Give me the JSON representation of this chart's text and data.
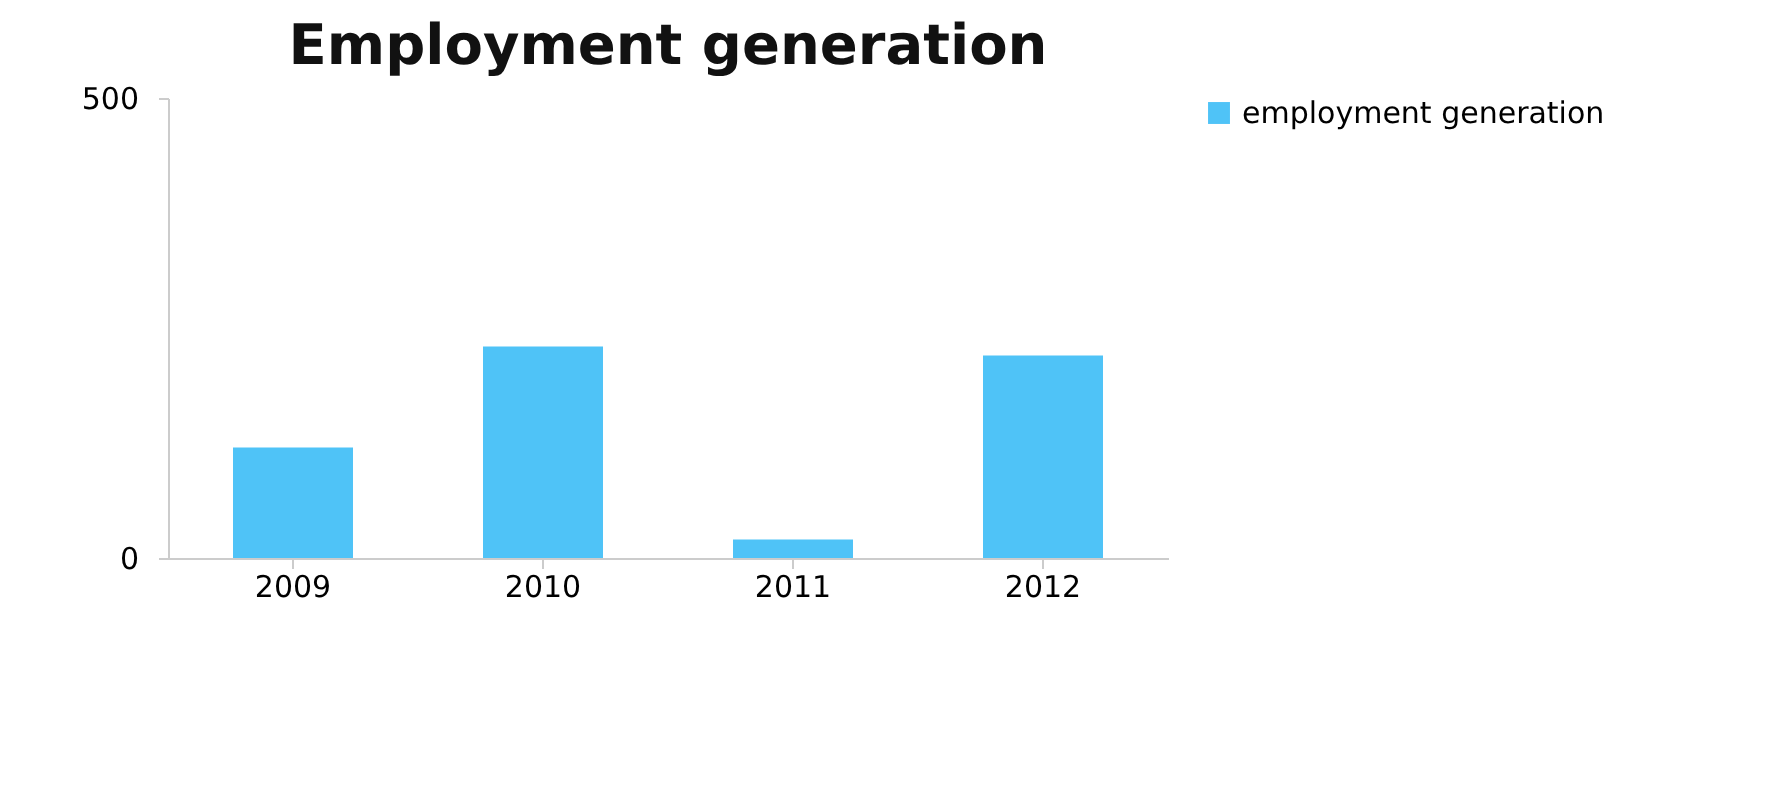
{
  "chart_data": {
    "type": "bar",
    "title": "Employment generation",
    "categories": [
      "2009",
      "2010",
      "2011",
      "2012"
    ],
    "series": [
      {
        "name": "employment generation",
        "color": "#4fc3f7",
        "values": [
          120,
          230,
          20,
          220
        ]
      }
    ],
    "ylim": [
      0,
      500
    ],
    "yticks": [
      0,
      500
    ],
    "legend": "right"
  }
}
